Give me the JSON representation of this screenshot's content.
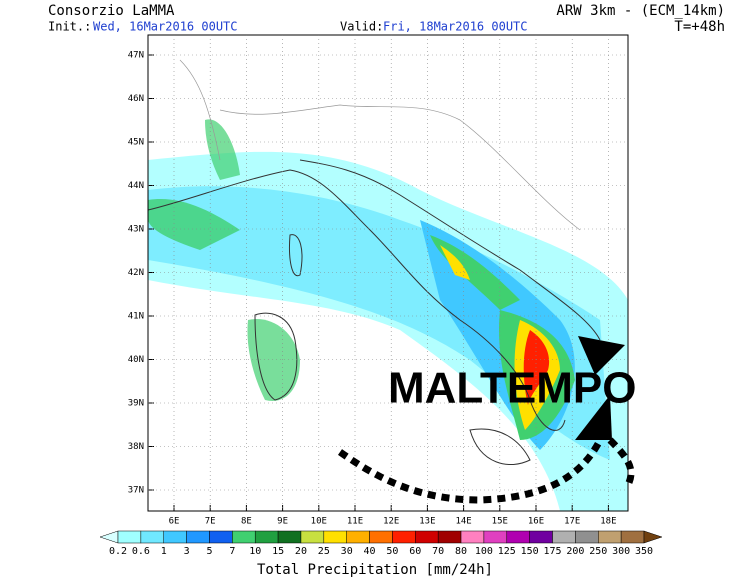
{
  "header": {
    "title": "Consorzio LaMMA",
    "init_label": "Init.:",
    "init_date": "Wed, 16Mar2016 00UTC",
    "valid_label": "Valid:",
    "valid_date": "Fri, 18Mar2016 00UTC",
    "model": "ARW 3km - (ECM_14km)",
    "lead_time": "T=+48h"
  },
  "map": {
    "lat_labels": [
      "47N",
      "46N",
      "45N",
      "44N",
      "43N",
      "42N",
      "41N",
      "40N",
      "39N",
      "38N",
      "37N"
    ],
    "lon_labels": [
      "6E",
      "7E",
      "8E",
      "9E",
      "10E",
      "11E",
      "12E",
      "13E",
      "14E",
      "15E",
      "16E",
      "17E",
      "18E"
    ],
    "annotation": "MALTEMPO"
  },
  "colorbar": {
    "title": "Total Precipitation [mm/24h]",
    "levels": [
      0.2,
      0.6,
      1,
      3,
      5,
      7,
      10,
      15,
      20,
      25,
      30,
      40,
      50,
      60,
      70,
      80,
      100,
      125,
      150,
      175,
      200,
      250,
      300,
      350
    ],
    "colors": [
      "#d8ffff",
      "#a0ffff",
      "#70e8ff",
      "#40c8ff",
      "#2098ff",
      "#1060f0",
      "#40d070",
      "#20a040",
      "#107020",
      "#c8e040",
      "#ffe000",
      "#ffb000",
      "#ff7000",
      "#ff2000",
      "#d00000",
      "#a00000",
      "#ff80c0",
      "#e040c0",
      "#b000b0",
      "#7000a0",
      "#b0b0b0",
      "#909090",
      "#c0a070",
      "#a07040",
      "#704010"
    ]
  }
}
